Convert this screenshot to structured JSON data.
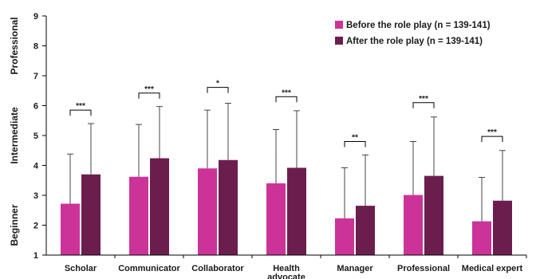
{
  "chart_data": {
    "type": "bar",
    "title": "",
    "xlabel": "",
    "ylabel": "",
    "ylim": [
      1,
      9
    ],
    "yticks": [
      1,
      2,
      3,
      4,
      5,
      6,
      7,
      8,
      9
    ],
    "grid": false,
    "legend_position": "top-right",
    "categories": [
      "Scholar",
      "Communicator",
      "Collaborator",
      "Health advocate",
      "Manager",
      "Professional",
      "Medical expert"
    ],
    "category_lines": [
      [
        "Scholar"
      ],
      [
        "Communicator"
      ],
      [
        "Collaborator"
      ],
      [
        "Health",
        "advocate"
      ],
      [
        "Manager"
      ],
      [
        "Professional"
      ],
      [
        "Medical expert"
      ]
    ],
    "band_labels": [
      {
        "text": "Professional",
        "y": 8
      },
      {
        "text": "Intermediate",
        "y": 5
      },
      {
        "text": "Beginner",
        "y": 2
      }
    ],
    "series": [
      {
        "name": "Before the role play (n = 139-141)",
        "color": "#cc3399",
        "values": [
          2.72,
          3.62,
          3.9,
          3.4,
          2.23,
          3.01,
          2.13
        ],
        "error_upper": [
          4.38,
          5.37,
          5.85,
          5.2,
          3.92,
          4.8,
          3.6
        ]
      },
      {
        "name": "After the role play (n = 139-141)",
        "color": "#6b1e4e",
        "values": [
          3.7,
          4.24,
          4.18,
          3.92,
          2.65,
          3.65,
          2.82
        ],
        "error_upper": [
          5.4,
          5.97,
          6.08,
          5.83,
          4.35,
          5.62,
          4.5
        ]
      }
    ],
    "significance": [
      {
        "label": "***",
        "y": 5.85
      },
      {
        "label": "***",
        "y": 6.42
      },
      {
        "label": "*",
        "y": 6.61
      },
      {
        "label": "***",
        "y": 6.3
      },
      {
        "label": "**",
        "y": 4.8
      },
      {
        "label": "***",
        "y": 6.1
      },
      {
        "label": "***",
        "y": 4.97
      }
    ]
  }
}
